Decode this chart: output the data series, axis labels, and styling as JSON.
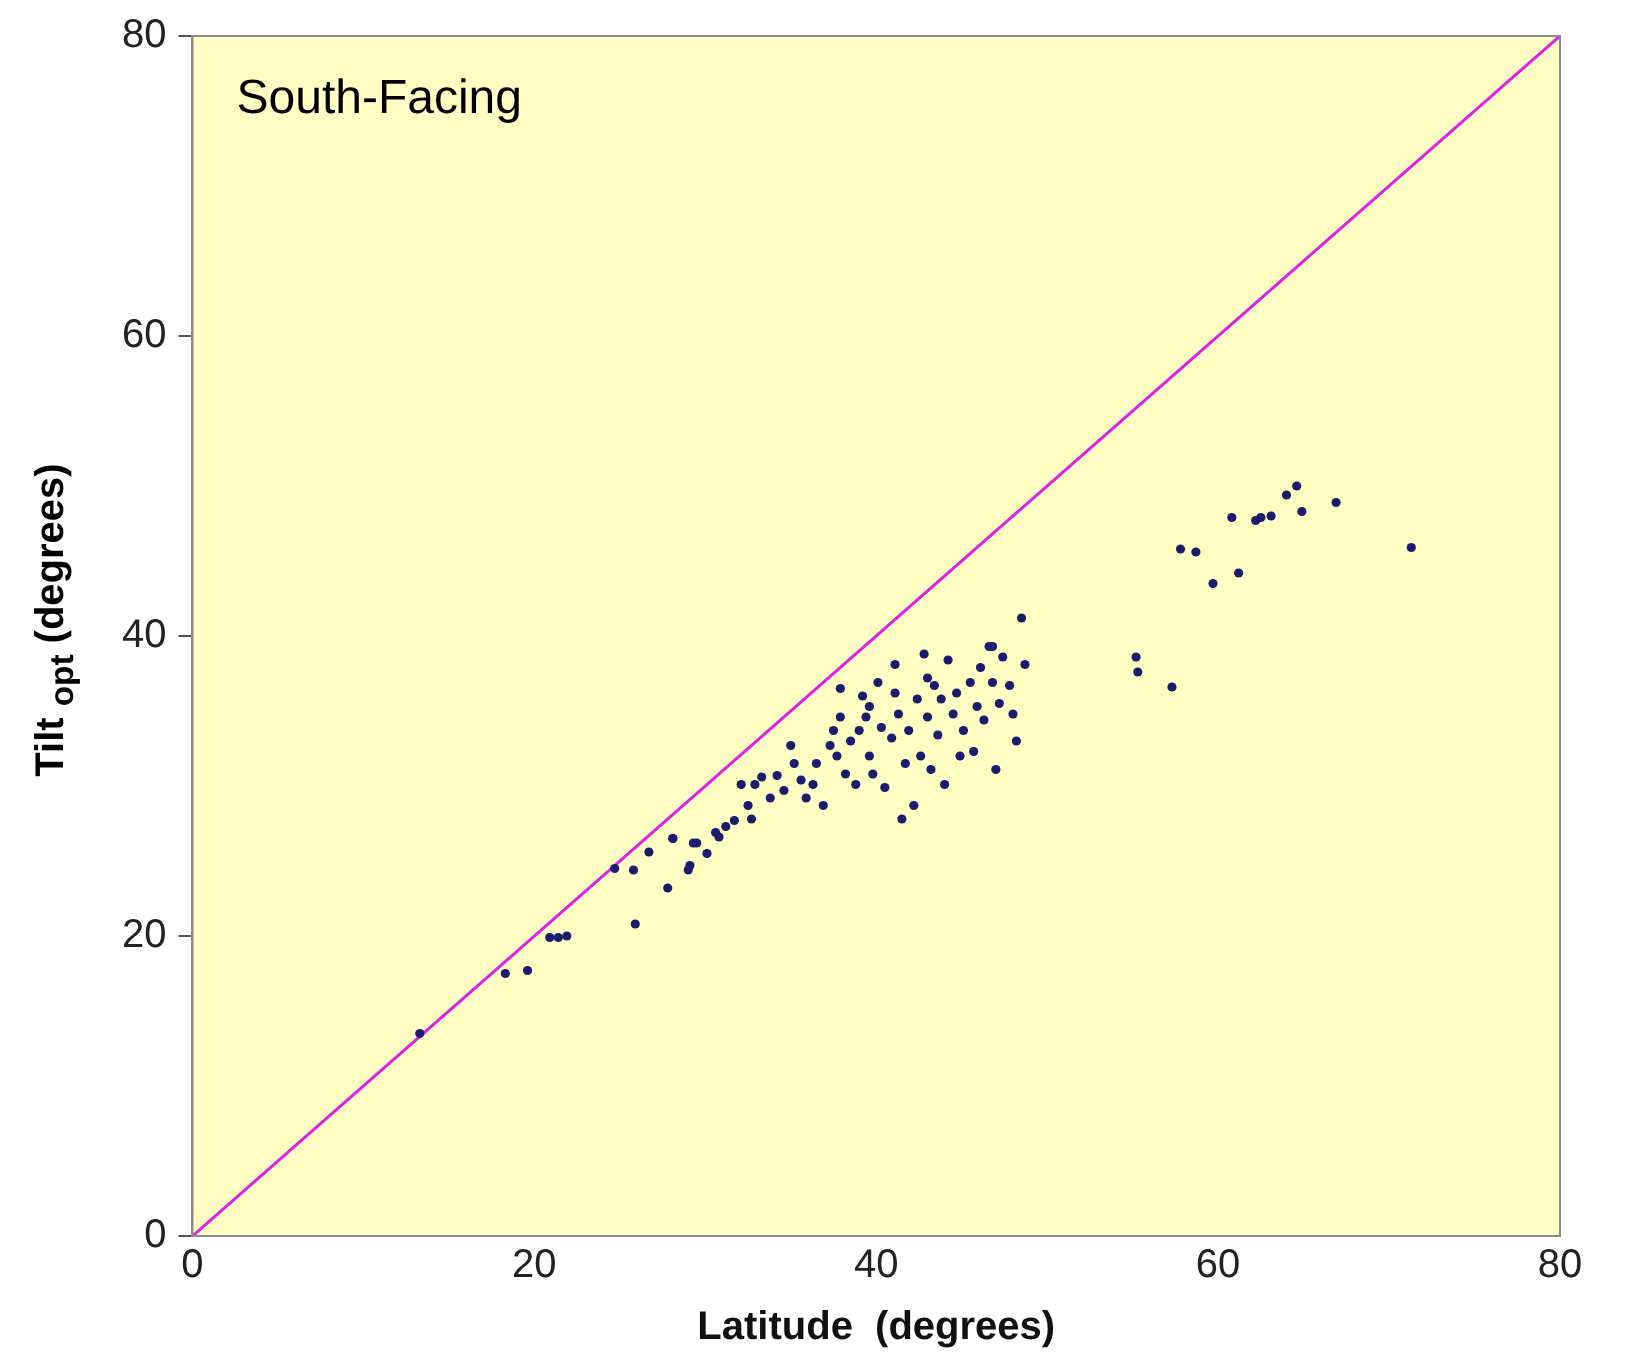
{
  "chart_data": {
    "type": "scatter",
    "xlabel": "Latitude  (degrees)",
    "ylabel": "Tilt $_{opt}$  (degrees)",
    "annotations": [
      "South-Facing"
    ],
    "xlim": [
      0,
      80
    ],
    "ylim": [
      0,
      80
    ],
    "xticks": [
      0,
      20,
      40,
      60,
      80
    ],
    "yticks": [
      0,
      20,
      40,
      60,
      80
    ],
    "grid": false,
    "legend": false,
    "series": [
      {
        "color": "#1c1c6e",
        "marker": "circle",
        "x": [
          13.3,
          18.3,
          19.6,
          20.9,
          21.4,
          21.9,
          25.9,
          24.7,
          25.8,
          26.7,
          28.1,
          27.8,
          29.0,
          29.3,
          57.8,
          58.7,
          59.7,
          61.2,
          60.8,
          62.2,
          62.5,
          63.1,
          64.0,
          64.6,
          64.9,
          66.9,
          71.3,
          55.2,
          55.3,
          57.3,
          28.1,
          29.1,
          29.5,
          30.1,
          30.6,
          31.2,
          31.7,
          32.1,
          32.5,
          32.7,
          33.3,
          33.8,
          34.2,
          34.6,
          35.0,
          35.2,
          35.6,
          35.9,
          36.3,
          36.5,
          36.9,
          37.3,
          37.5,
          37.7,
          37.9,
          38.2,
          38.5,
          38.8,
          39.0,
          39.2,
          39.4,
          39.6,
          39.8,
          40.1,
          40.3,
          40.5,
          40.9,
          41.1,
          41.3,
          41.5,
          41.7,
          41.9,
          42.2,
          42.4,
          42.6,
          42.8,
          43.0,
          43.2,
          43.4,
          43.6,
          43.8,
          44.0,
          44.2,
          44.5,
          44.7,
          44.9,
          45.1,
          45.5,
          45.7,
          45.9,
          46.1,
          46.3,
          46.6,
          46.8,
          47.0,
          47.2,
          47.4,
          47.8,
          48.0,
          48.2,
          48.5,
          48.7,
          46.8,
          37.9,
          32.9,
          30.8,
          41.1,
          43.0,
          39.6
        ],
        "values": [
          13.5,
          17.5,
          17.7,
          19.9,
          19.9,
          20.0,
          20.8,
          24.5,
          24.4,
          25.6,
          26.5,
          23.2,
          24.4,
          26.2,
          45.8,
          45.6,
          43.5,
          44.2,
          47.9,
          47.7,
          47.9,
          48.0,
          49.4,
          50.0,
          48.3,
          48.9,
          45.9,
          38.6,
          37.6,
          36.6,
          26.5,
          24.7,
          26.2,
          25.5,
          26.9,
          27.3,
          27.7,
          30.1,
          28.7,
          27.8,
          30.6,
          29.2,
          30.7,
          29.7,
          32.7,
          31.5,
          30.4,
          29.2,
          30.1,
          31.5,
          28.7,
          32.7,
          33.7,
          32.0,
          34.6,
          30.8,
          33.0,
          30.1,
          33.7,
          36.0,
          34.6,
          32.0,
          30.8,
          36.9,
          33.9,
          29.9,
          33.2,
          36.2,
          34.8,
          27.8,
          31.5,
          33.7,
          28.7,
          35.8,
          32.0,
          38.8,
          34.6,
          31.1,
          36.7,
          33.4,
          35.8,
          30.1,
          38.4,
          34.8,
          36.2,
          32.0,
          33.7,
          36.9,
          32.3,
          35.3,
          37.9,
          34.4,
          39.3,
          36.9,
          31.1,
          35.5,
          38.6,
          36.7,
          34.8,
          33.0,
          41.2,
          38.1,
          39.3,
          36.5,
          30.1,
          26.6,
          38.1,
          37.2,
          35.3
        ]
      },
      {
        "type": "line",
        "color": "#e020e0",
        "marker": "none",
        "x": [
          0,
          80
        ],
        "values": [
          0,
          80
        ]
      }
    ]
  }
}
